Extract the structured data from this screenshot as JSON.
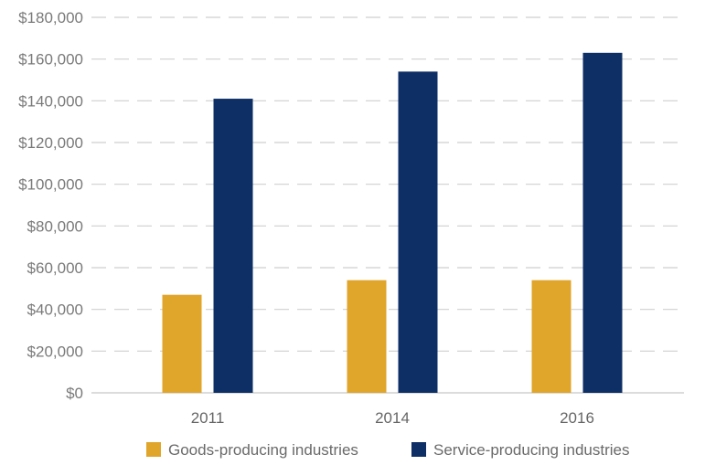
{
  "chart_data": {
    "type": "bar",
    "categories": [
      "2011",
      "2014",
      "2016"
    ],
    "series": [
      {
        "name": "Goods-producing industries",
        "values": [
          47000,
          54000,
          54000
        ],
        "color": "#E0A52B"
      },
      {
        "name": "Service-producing industries",
        "values": [
          141000,
          154000,
          163000
        ],
        "color": "#0E2F66"
      }
    ],
    "ylim": [
      0,
      180000
    ],
    "yticks": [
      0,
      20000,
      40000,
      60000,
      80000,
      100000,
      120000,
      140000,
      160000,
      180000
    ],
    "ytick_labels": [
      "$0",
      "$20,000",
      "$40,000",
      "$60,000",
      "$80,000",
      "$100,000",
      "$120,000",
      "$140,000",
      "$160,000",
      "$180,000"
    ],
    "grid": "horizontal dashed",
    "legend_position": "bottom"
  }
}
